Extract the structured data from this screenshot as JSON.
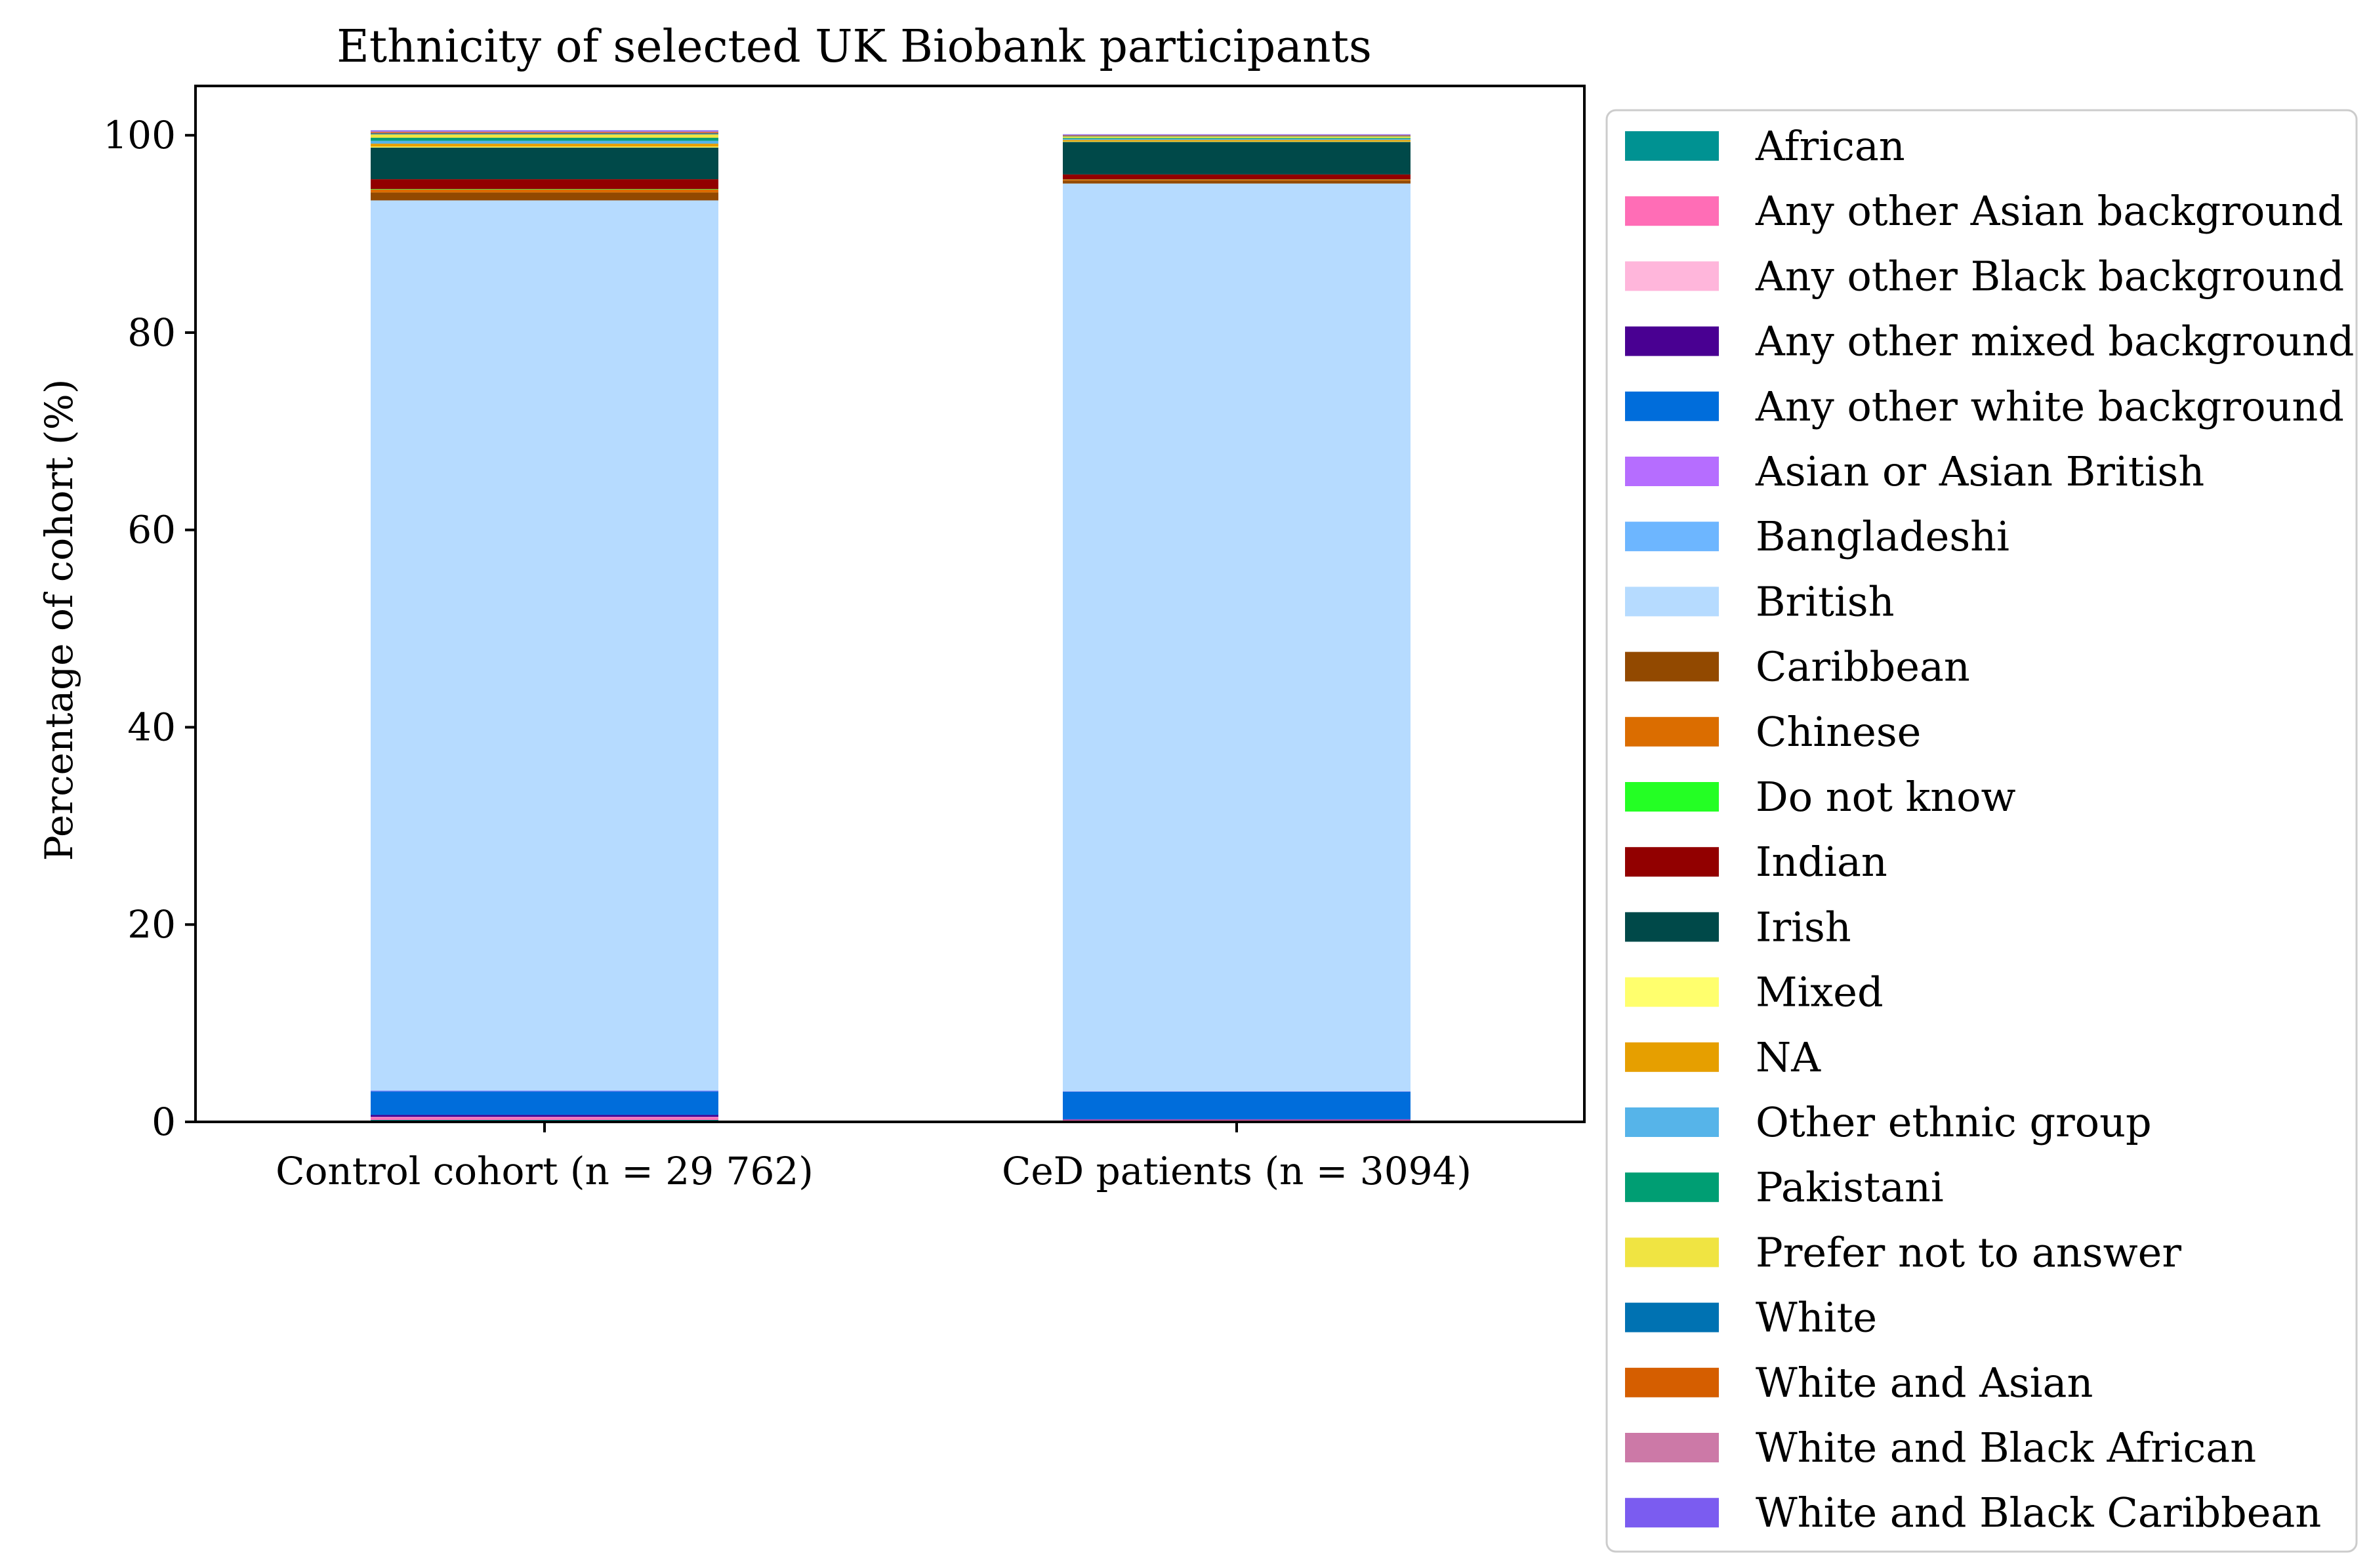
{
  "chart_data": {
    "type": "bar",
    "stacked": true,
    "title": "Ethnicity of selected UK Biobank participants",
    "xlabel": "",
    "ylabel": "Percentage of cohort (%)",
    "ylim": [
      0,
      105
    ],
    "yticks": [
      0,
      20,
      40,
      60,
      80,
      100
    ],
    "categories": [
      "Control cohort (n = 29 762)",
      "CeD patients (n = 3094)"
    ],
    "legend_position": "outside-right",
    "series": [
      {
        "name": "African",
        "color": "#009292",
        "values": [
          0.2,
          0.1
        ]
      },
      {
        "name": "Any other Asian background",
        "color": "#ff6db6",
        "values": [
          0.25,
          0.1
        ]
      },
      {
        "name": "Any other Black background",
        "color": "#ffb6db",
        "values": [
          0.05,
          0.02
        ]
      },
      {
        "name": "Any other mixed background",
        "color": "#490092",
        "values": [
          0.2,
          0.05
        ]
      },
      {
        "name": "Any other white background",
        "color": "#006ddb",
        "values": [
          2.4,
          2.8
        ]
      },
      {
        "name": "Asian or Asian British",
        "color": "#b66dff",
        "values": [
          0.05,
          0.02
        ]
      },
      {
        "name": "Bangladeshi",
        "color": "#6db6ff",
        "values": [
          0.05,
          0.02
        ]
      },
      {
        "name": "British",
        "color": "#b6dbff",
        "values": [
          90.2,
          92.0
        ]
      },
      {
        "name": "Caribbean",
        "color": "#924900",
        "values": [
          0.8,
          0.3
        ]
      },
      {
        "name": "Chinese",
        "color": "#db6d00",
        "values": [
          0.3,
          0.1
        ]
      },
      {
        "name": "Do not know",
        "color": "#24ff24",
        "values": [
          0.05,
          0.02
        ]
      },
      {
        "name": "Indian",
        "color": "#920000",
        "values": [
          1.0,
          0.5
        ]
      },
      {
        "name": "Irish",
        "color": "#004949",
        "values": [
          3.2,
          3.3
        ]
      },
      {
        "name": "Mixed",
        "color": "#ffff6d",
        "values": [
          0.1,
          0.05
        ]
      },
      {
        "name": "NA",
        "color": "#e69f00",
        "values": [
          0.3,
          0.15
        ]
      },
      {
        "name": "Other ethnic group",
        "color": "#56b4e9",
        "values": [
          0.3,
          0.1
        ]
      },
      {
        "name": "Pakistani",
        "color": "#009e73",
        "values": [
          0.3,
          0.1
        ]
      },
      {
        "name": "Prefer not to answer",
        "color": "#f0e442",
        "values": [
          0.35,
          0.15
        ]
      },
      {
        "name": "White",
        "color": "#0072b2",
        "values": [
          0.1,
          0.05
        ]
      },
      {
        "name": "White and Asian",
        "color": "#d55e00",
        "values": [
          0.1,
          0.05
        ]
      },
      {
        "name": "White and Black African",
        "color": "#cc79a7",
        "values": [
          0.1,
          0.05
        ]
      },
      {
        "name": "White and Black Caribbean",
        "color": "#7b5cf0",
        "values": [
          0.1,
          0.07
        ]
      }
    ]
  }
}
